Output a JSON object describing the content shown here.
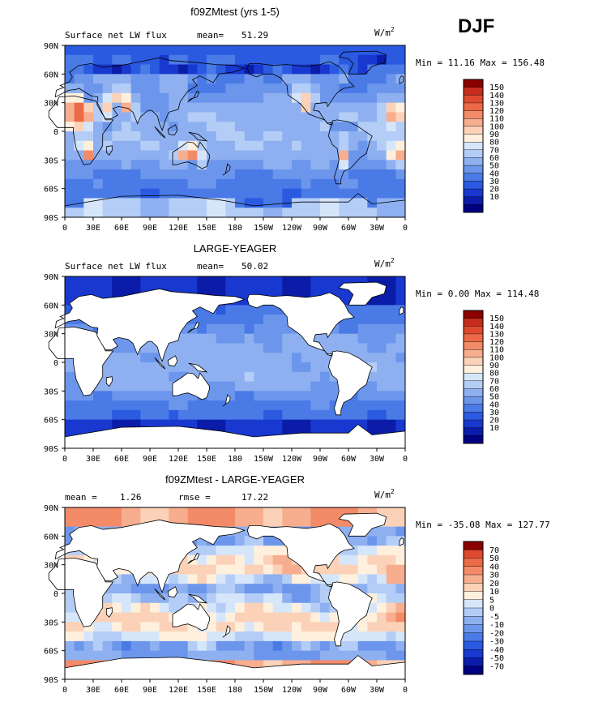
{
  "season": "DJF",
  "palettes": {
    "abs": [
      "#000080",
      "#0a1ca8",
      "#1838d0",
      "#2a5ae0",
      "#4a7ae6",
      "#6c96ec",
      "#8eb0f0",
      "#b4cdf6",
      "#d6e6fa",
      "#fff0de",
      "#fbd2b8",
      "#f7ae8e",
      "#f38b68",
      "#ec6a48",
      "#de4a30",
      "#c42d1c",
      "#8b0000"
    ],
    "diff": [
      "#000080",
      "#0a1ca8",
      "#1838d0",
      "#2a5ae0",
      "#4a7ae6",
      "#6c96ec",
      "#8eb0f0",
      "#b4cdf6",
      "#d6e6fa",
      "#fff0de",
      "#fbd2b8",
      "#f7ae8e",
      "#f38b68",
      "#ec6a48",
      "#de4a30",
      "#8b0000"
    ]
  },
  "chart_data": [
    {
      "type": "heatmap",
      "title": "f09ZMtest (yrs 1-5)",
      "variable": "Surface net LW flux",
      "stat1_label": "mean=",
      "stat1_value": "51.29",
      "stat2_label": "",
      "stat2_value": "",
      "units": "W/m",
      "minmax": "Min =  11.16 Max = 156.48",
      "x_ticks": [
        "0",
        "30E",
        "60E",
        "90E",
        "120E",
        "150E",
        "180",
        "150W",
        "120W",
        "90W",
        "60W",
        "30W",
        "0"
      ],
      "y_ticks": [
        "90N",
        "60N",
        "30N",
        "0",
        "30S",
        "60S",
        "90S"
      ],
      "colorbar_levels": [
        "150",
        "140",
        "130",
        "120",
        "110",
        "100",
        "90",
        "80",
        "70",
        "60",
        "50",
        "40",
        "30",
        "20",
        "10"
      ],
      "palette": "abs",
      "field_mode": "model",
      "mask_land": false,
      "xlim": [
        0,
        360
      ],
      "ylim": [
        -90,
        90
      ]
    },
    {
      "type": "heatmap",
      "title": "LARGE-YEAGER",
      "variable": "Surface net LW flux",
      "stat1_label": "mean=",
      "stat1_value": "50.02",
      "stat2_label": "",
      "stat2_value": "",
      "units": "W/m",
      "minmax": "Min =   0.00 Max = 114.48",
      "x_ticks": [
        "0",
        "30E",
        "60E",
        "90E",
        "120E",
        "150E",
        "180",
        "150W",
        "120W",
        "90W",
        "60W",
        "30W",
        "0"
      ],
      "y_ticks": [
        "90N",
        "60N",
        "30N",
        "0",
        "30S",
        "60S",
        "90S"
      ],
      "colorbar_levels": [
        "150",
        "140",
        "130",
        "120",
        "110",
        "100",
        "90",
        "80",
        "70",
        "60",
        "50",
        "40",
        "30",
        "20",
        "10"
      ],
      "palette": "abs",
      "field_mode": "obs",
      "mask_land": true,
      "xlim": [
        0,
        360
      ],
      "ylim": [
        -90,
        90
      ]
    },
    {
      "type": "heatmap",
      "title": "f09ZMtest - LARGE-YEAGER",
      "variable": "",
      "stat1_label": "mean =",
      "stat1_value": "1.26",
      "stat2_label": "rmse =",
      "stat2_value": "17.22",
      "units": "W/m",
      "minmax": "Min = -35.08 Max = 127.77",
      "x_ticks": [
        "0",
        "30E",
        "60E",
        "90E",
        "120E",
        "150E",
        "180",
        "150W",
        "120W",
        "90W",
        "60W",
        "30W",
        "0"
      ],
      "y_ticks": [
        "90N",
        "60N",
        "30N",
        "0",
        "30S",
        "60S",
        "90S"
      ],
      "colorbar_levels": [
        "70",
        "50",
        "40",
        "30",
        "20",
        "10",
        "5",
        "0",
        "-5",
        "-10",
        "-20",
        "-30",
        "-40",
        "-50",
        "-70"
      ],
      "palette": "diff",
      "field_mode": "diff",
      "mask_land": true,
      "xlim": [
        0,
        360
      ],
      "ylim": [
        -90,
        90
      ]
    }
  ]
}
